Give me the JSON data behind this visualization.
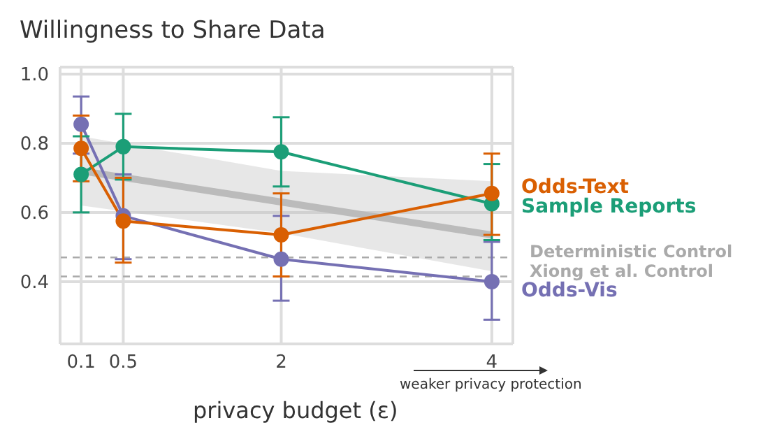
{
  "chart_data": {
    "type": "line",
    "title": "Willingness to Share Data",
    "xlabel": "privacy budget (ε)",
    "x": [
      0.1,
      0.5,
      2,
      4
    ],
    "xlim": [
      -0.1,
      4.2
    ],
    "xticks": [
      0.1,
      0.5,
      2,
      4
    ],
    "ylim": [
      0.22,
      1.02
    ],
    "yticks": [
      {
        "value": 0.4,
        "label": "0.4"
      },
      {
        "value": 0.6,
        "label": "0.6"
      },
      {
        "value": 0.8,
        "label": "0.8"
      },
      {
        "value": 1,
        "label": "1.0"
      }
    ],
    "grid": true,
    "marker": "circle",
    "line_style": "solid",
    "series": [
      {
        "name": "Odds-Text",
        "color": "#d95f02",
        "values": [
          0.785,
          0.575,
          0.535,
          0.655
        ],
        "errors": [
          [
            0.69,
            0.88
          ],
          [
            0.455,
            0.7
          ],
          [
            0.415,
            0.655
          ],
          [
            0.535,
            0.77
          ]
        ]
      },
      {
        "name": "Sample Reports",
        "color": "#1b9e77",
        "values": [
          0.71,
          0.79,
          0.775,
          0.625
        ],
        "errors": [
          [
            0.6,
            0.82
          ],
          [
            0.695,
            0.885
          ],
          [
            0.675,
            0.875
          ],
          [
            0.52,
            0.74
          ]
        ]
      },
      {
        "name": "Odds-Vis",
        "color": "#7570b3",
        "values": [
          0.855,
          0.59,
          0.465,
          0.4
        ],
        "errors": [
          [
            0.77,
            0.935
          ],
          [
            0.465,
            0.71
          ],
          [
            0.345,
            0.59
          ],
          [
            0.29,
            0.515
          ]
        ]
      },
      {
        "type": "line",
        "color": "#bbbbbb",
        "x": [
          0.1,
          2,
          4
        ],
        "values": [
          0.72,
          0.63,
          0.535
        ],
        "lower": [
          0.62,
          0.54,
          0.43
        ],
        "upper": [
          0.82,
          0.72,
          0.69
        ],
        "marker": "none"
      }
    ],
    "ref_lines": [
      {
        "axis": "y",
        "value": 0.47,
        "label": "Deterministic Control",
        "color": "#aaaaaa",
        "line_style": "dashed"
      },
      {
        "axis": "y",
        "value": 0.415,
        "label": "Xiong et al. Control",
        "color": "#aaaaaa",
        "line_style": "dashed"
      }
    ],
    "annotations": [
      "weaker privacy protection"
    ]
  }
}
